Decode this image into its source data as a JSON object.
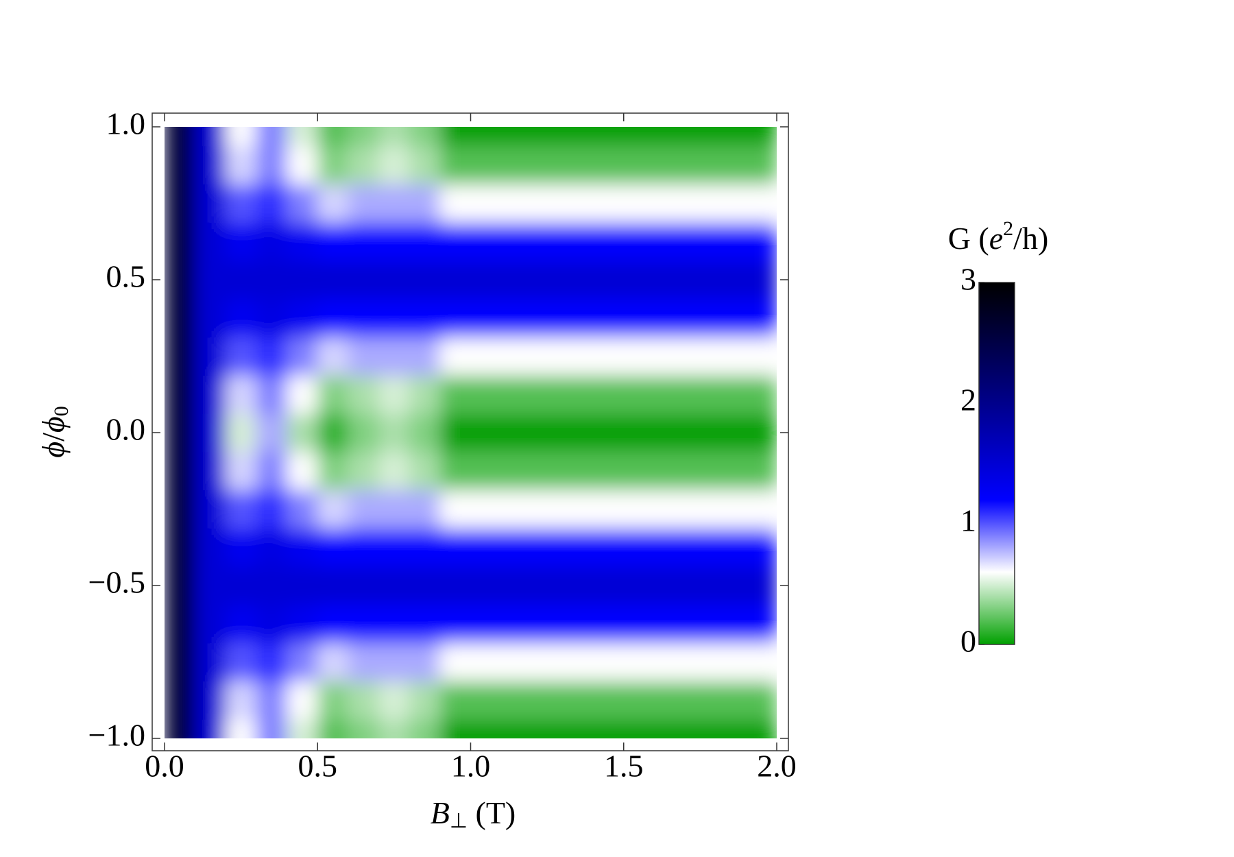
{
  "chart_data": {
    "type": "heatmap",
    "xlabel": [
      "B",
      "⊥",
      " (T)"
    ],
    "ylabel": [
      "ϕ",
      "/",
      "ϕ",
      "0"
    ],
    "x": [
      0.05,
      0.15,
      0.25,
      0.35,
      0.45,
      0.55,
      0.65,
      0.75,
      0.85,
      0.95,
      1.05,
      1.15,
      1.25,
      1.35,
      1.45,
      1.55,
      1.65,
      1.75,
      1.85,
      1.95
    ],
    "y": [
      -1,
      -0.875,
      -0.75,
      -0.625,
      -0.5,
      -0.375,
      -0.25,
      -0.125,
      0,
      0.125,
      0.25,
      0.375,
      0.5,
      0.625,
      0.75,
      0.875,
      1
    ],
    "z": [
      [
        2.6,
        1.5,
        0.6,
        0.9,
        0.5,
        0.2,
        0.3,
        0.4,
        0.3,
        0,
        0,
        0,
        0,
        0,
        0,
        0,
        0,
        0,
        0,
        0
      ],
      [
        2.6,
        1.5,
        0.7,
        0.9,
        0.6,
        0.3,
        0.4,
        0.5,
        0.4,
        0.2,
        0.2,
        0.2,
        0.2,
        0.2,
        0.2,
        0.2,
        0.2,
        0.2,
        0.2,
        0.2
      ],
      [
        2.6,
        1.5,
        1.0,
        1.1,
        0.9,
        0.7,
        0.8,
        0.8,
        0.8,
        0.6,
        0.6,
        0.6,
        0.6,
        0.6,
        0.6,
        0.6,
        0.6,
        0.6,
        0.6,
        0.6
      ],
      [
        2.6,
        1.5,
        1.3,
        1.4,
        1.3,
        1.2,
        1.2,
        1.2,
        1.2,
        1.2,
        1.2,
        1.2,
        1.2,
        1.2,
        1.2,
        1.2,
        1.2,
        1.2,
        1.2,
        1.2
      ],
      [
        2.6,
        1.5,
        1.5,
        1.5,
        1.5,
        1.5,
        1.5,
        1.5,
        1.5,
        1.5,
        1.5,
        1.5,
        1.5,
        1.5,
        1.5,
        1.5,
        1.5,
        1.5,
        1.5,
        1.5
      ],
      [
        2.6,
        1.5,
        1.3,
        1.4,
        1.3,
        1.2,
        1.2,
        1.2,
        1.2,
        1.2,
        1.2,
        1.2,
        1.2,
        1.2,
        1.2,
        1.2,
        1.2,
        1.2,
        1.2,
        1.2
      ],
      [
        2.6,
        1.5,
        1.0,
        1.1,
        0.9,
        0.7,
        0.8,
        0.8,
        0.8,
        0.6,
        0.6,
        0.6,
        0.6,
        0.6,
        0.6,
        0.6,
        0.6,
        0.6,
        0.6,
        0.6
      ],
      [
        2.6,
        1.5,
        0.7,
        0.9,
        0.6,
        0.3,
        0.4,
        0.5,
        0.4,
        0.2,
        0.2,
        0.2,
        0.2,
        0.2,
        0.2,
        0.2,
        0.2,
        0.2,
        0.2,
        0.2
      ],
      [
        2.6,
        1.5,
        0.5,
        0.8,
        0.4,
        0.1,
        0.3,
        0.4,
        0.3,
        0,
        0,
        0,
        0,
        0,
        0,
        0,
        0,
        0,
        0,
        0
      ],
      [
        2.6,
        1.5,
        0.7,
        0.9,
        0.6,
        0.3,
        0.4,
        0.5,
        0.4,
        0.2,
        0.2,
        0.2,
        0.2,
        0.2,
        0.2,
        0.2,
        0.2,
        0.2,
        0.2,
        0.2
      ],
      [
        2.6,
        1.5,
        1.0,
        1.1,
        0.9,
        0.7,
        0.8,
        0.8,
        0.8,
        0.6,
        0.6,
        0.6,
        0.6,
        0.6,
        0.6,
        0.6,
        0.6,
        0.6,
        0.6,
        0.6
      ],
      [
        2.6,
        1.5,
        1.3,
        1.4,
        1.3,
        1.2,
        1.2,
        1.2,
        1.2,
        1.2,
        1.2,
        1.2,
        1.2,
        1.2,
        1.2,
        1.2,
        1.2,
        1.2,
        1.2,
        1.2
      ],
      [
        2.6,
        1.5,
        1.5,
        1.5,
        1.5,
        1.5,
        1.5,
        1.5,
        1.5,
        1.5,
        1.5,
        1.5,
        1.5,
        1.5,
        1.5,
        1.5,
        1.5,
        1.5,
        1.5,
        1.5
      ],
      [
        2.6,
        1.5,
        1.3,
        1.4,
        1.3,
        1.2,
        1.2,
        1.2,
        1.2,
        1.2,
        1.2,
        1.2,
        1.2,
        1.2,
        1.2,
        1.2,
        1.2,
        1.2,
        1.2,
        1.2
      ],
      [
        2.6,
        1.5,
        1.0,
        1.1,
        0.9,
        0.7,
        0.8,
        0.8,
        0.8,
        0.6,
        0.6,
        0.6,
        0.6,
        0.6,
        0.6,
        0.6,
        0.6,
        0.6,
        0.6,
        0.6
      ],
      [
        2.6,
        1.5,
        0.7,
        0.9,
        0.6,
        0.3,
        0.4,
        0.5,
        0.4,
        0.2,
        0.2,
        0.2,
        0.2,
        0.2,
        0.2,
        0.2,
        0.2,
        0.2,
        0.2,
        0.2
      ],
      [
        2.6,
        1.5,
        0.6,
        0.9,
        0.5,
        0.2,
        0.3,
        0.4,
        0.3,
        0,
        0,
        0,
        0,
        0,
        0,
        0,
        0,
        0,
        0,
        0
      ]
    ],
    "xlim": [
      0,
      2
    ],
    "ylim": [
      -1,
      1
    ],
    "xticks": [
      {
        "value": 0,
        "label": "0.0"
      },
      0.5,
      {
        "value": 1,
        "label": "1.0"
      },
      1.5,
      {
        "value": 2,
        "label": "2.0"
      }
    ],
    "yticks": [
      {
        "value": -1,
        "label": "−1.0"
      },
      {
        "value": -0.5,
        "label": "−0.5"
      },
      {
        "value": 0,
        "label": "0.0"
      },
      0.5,
      {
        "value": 1,
        "label": "1.0"
      }
    ],
    "colorscale": [
      [
        0,
        "#00a000"
      ],
      [
        0.6,
        "#ffffff"
      ],
      [
        1.2,
        "#0000ff"
      ],
      [
        2,
        "#00008b"
      ],
      [
        3,
        "#000000"
      ]
    ],
    "colorbar": {
      "label": [
        "G (",
        "e",
        "2",
        "/h)"
      ],
      "zlim": [
        0,
        3
      ],
      "ticks": [
        0,
        1,
        2,
        3
      ]
    }
  }
}
